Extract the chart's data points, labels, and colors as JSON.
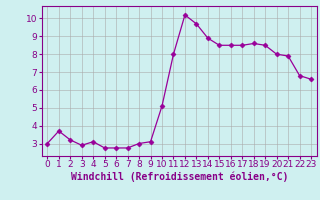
{
  "x": [
    0,
    1,
    2,
    3,
    4,
    5,
    6,
    7,
    8,
    9,
    10,
    11,
    12,
    13,
    14,
    15,
    16,
    17,
    18,
    19,
    20,
    21,
    22,
    23
  ],
  "y": [
    3.0,
    3.7,
    3.2,
    2.9,
    3.1,
    2.75,
    2.75,
    2.75,
    3.0,
    3.1,
    5.1,
    8.0,
    10.2,
    9.7,
    8.9,
    8.5,
    8.5,
    8.5,
    8.6,
    8.5,
    8.0,
    7.9,
    6.8,
    6.6
  ],
  "line_color": "#990099",
  "marker": "D",
  "marker_size": 2.5,
  "bg_color": "#cff0f0",
  "grid_color": "#aaaaaa",
  "xlabel": "Windchill (Refroidissement éolien,°C)",
  "xlabel_color": "#880088",
  "ylabel": "",
  "title": "",
  "xlim": [
    -0.5,
    23.5
  ],
  "ylim": [
    2.3,
    10.7
  ],
  "yticks": [
    3,
    4,
    5,
    6,
    7,
    8,
    9,
    10
  ],
  "xticks": [
    0,
    1,
    2,
    3,
    4,
    5,
    6,
    7,
    8,
    9,
    10,
    11,
    12,
    13,
    14,
    15,
    16,
    17,
    18,
    19,
    20,
    21,
    22,
    23
  ],
  "axis_color": "#880088",
  "tick_color": "#880088",
  "font_size": 6.5,
  "xlabel_fontsize": 7.0
}
